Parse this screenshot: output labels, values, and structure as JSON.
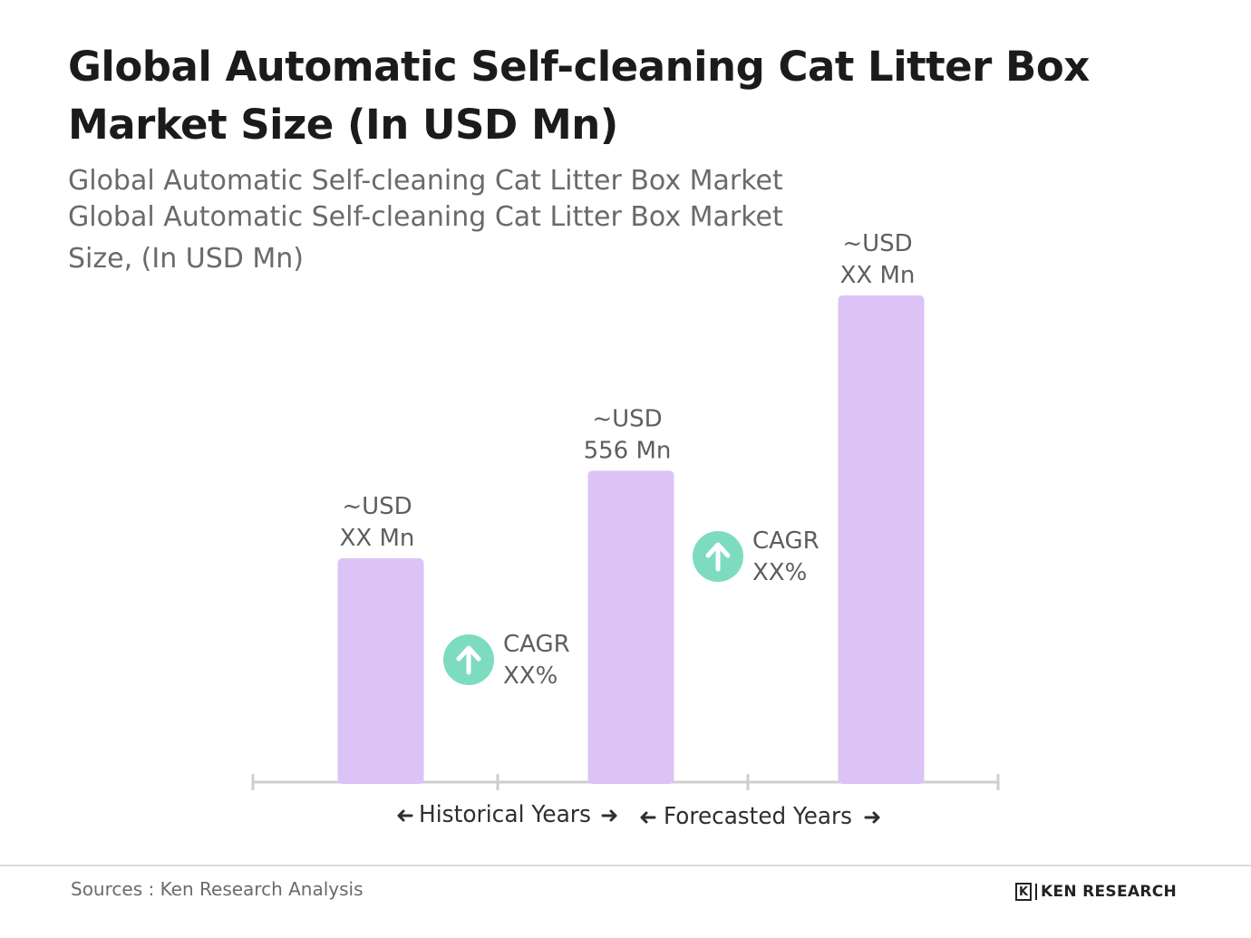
{
  "title": "Global Automatic Self-cleaning Cat Litter Box Market Size (In USD Mn)",
  "subtitle_line1": "Global Automatic Self-cleaning Cat Litter Box Market",
  "subtitle_line2": "Global Automatic Self-cleaning Cat Litter Box Market",
  "subtitle_line3": "Size, (In USD Mn)",
  "chart_data": {
    "type": "bar",
    "categories": [
      "",
      "",
      ""
    ],
    "values": [
      null,
      556,
      null
    ],
    "relative_heights": [
      0.46,
      0.64,
      1.0
    ],
    "bar_color": "#dcc3f6",
    "value_labels": [
      [
        "~USD",
        "XX Mn"
      ],
      [
        "~USD",
        "556 Mn"
      ],
      [
        "~USD",
        "XX Mn"
      ]
    ],
    "annotations": [
      {
        "type": "cagr",
        "line1": "CAGR",
        "line2": "XX%",
        "between": [
          0,
          1
        ],
        "icon": "up-arrow-icon",
        "color": "#7ddcc0"
      },
      {
        "type": "cagr",
        "line1": "CAGR",
        "line2": "XX%",
        "between": [
          1,
          2
        ],
        "icon": "up-arrow-icon",
        "color": "#7ddcc0"
      }
    ],
    "periods": [
      "Historical Years",
      "Forecasted Years"
    ],
    "grid": false,
    "legend": "none"
  },
  "footer": {
    "source": "Sources : Ken Research Analysis",
    "logo_mark": "K",
    "logo_text": "KEN RESEARCH"
  }
}
